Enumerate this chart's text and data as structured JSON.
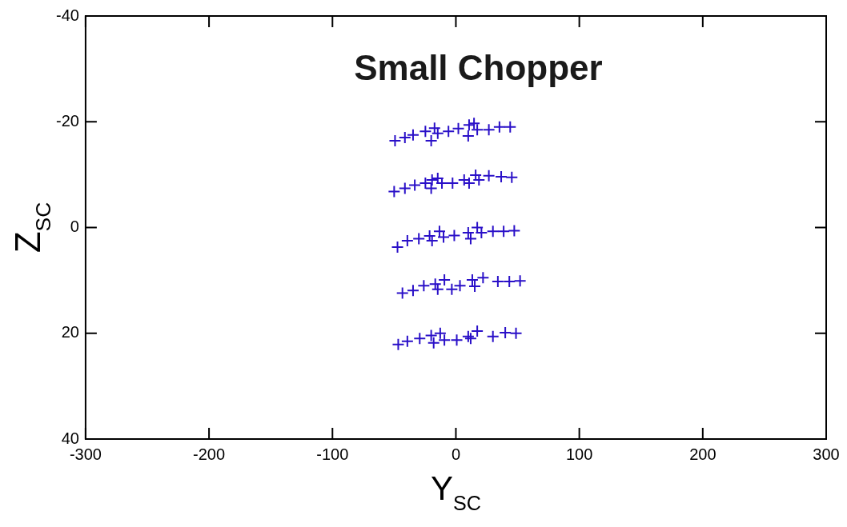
{
  "chart_data": {
    "type": "scatter",
    "title": "Small Chopper",
    "xlabel": "Y$_{SC}$",
    "ylabel": "Z$_{SC}$",
    "xlim": [
      -300,
      300
    ],
    "xticks": [
      -300,
      -200,
      -100,
      0,
      100,
      200,
      300
    ],
    "ylim": [
      40,
      -40
    ],
    "yticks": [
      -40,
      -20,
      0,
      20,
      40
    ],
    "grid": false,
    "legend": false,
    "marker": "cross",
    "series": [
      {
        "color": "#2a10c8",
        "x": [
          -49.3,
          -41.3,
          -34.7,
          -24.7,
          -17.3,
          -20,
          -14.7,
          -6,
          2,
          10.7,
          14.7,
          10,
          17.3,
          26.7,
          35.3,
          44,
          -50,
          -41.3,
          -33.3,
          -24.7,
          -19.3,
          -20,
          -14.7,
          -11.3,
          -2.7,
          6.7,
          10.7,
          16,
          18.7,
          26.7,
          36.7,
          45.3,
          -47.3,
          -39.3,
          -30,
          -21.3,
          -13.3,
          -19.3,
          -10,
          -1.3,
          10,
          17.3,
          12,
          20.7,
          30,
          38.7,
          47.3,
          -43.3,
          -34.7,
          -26,
          -16.7,
          -14.7,
          -9.3,
          -3.3,
          3.3,
          13.3,
          22,
          15.3,
          34,
          43.3,
          52,
          -46.7,
          -39.3,
          -29.3,
          -20,
          -18,
          -12.7,
          -9.3,
          0.7,
          10,
          17.3,
          12,
          30,
          40,
          48.7
        ],
        "values": [
          -16.4,
          -17,
          -17.5,
          -18.2,
          -18.8,
          -16.4,
          -17.8,
          -18.2,
          -18.7,
          -19.4,
          -19.7,
          -17.3,
          -18.5,
          -18.5,
          -19,
          -19,
          -6.8,
          -7.4,
          -8,
          -8.4,
          -9,
          -7.4,
          -9.3,
          -8.4,
          -8.4,
          -9,
          -8.4,
          -9.9,
          -9,
          -9.8,
          -9.6,
          -9.5,
          3.7,
          2.5,
          2.1,
          1.6,
          0.7,
          2.5,
          1.8,
          1.5,
          1,
          0,
          2.1,
          1,
          0.7,
          0.7,
          0.6,
          12.4,
          11.9,
          11,
          10.7,
          11.7,
          9.9,
          11.7,
          11,
          9.9,
          9.5,
          11.1,
          10.2,
          10.2,
          10.1,
          22.1,
          21.5,
          21,
          20.4,
          21.8,
          20,
          21.3,
          21.3,
          20.6,
          19.6,
          21,
          20.6,
          19.9,
          20
        ]
      }
    ]
  }
}
